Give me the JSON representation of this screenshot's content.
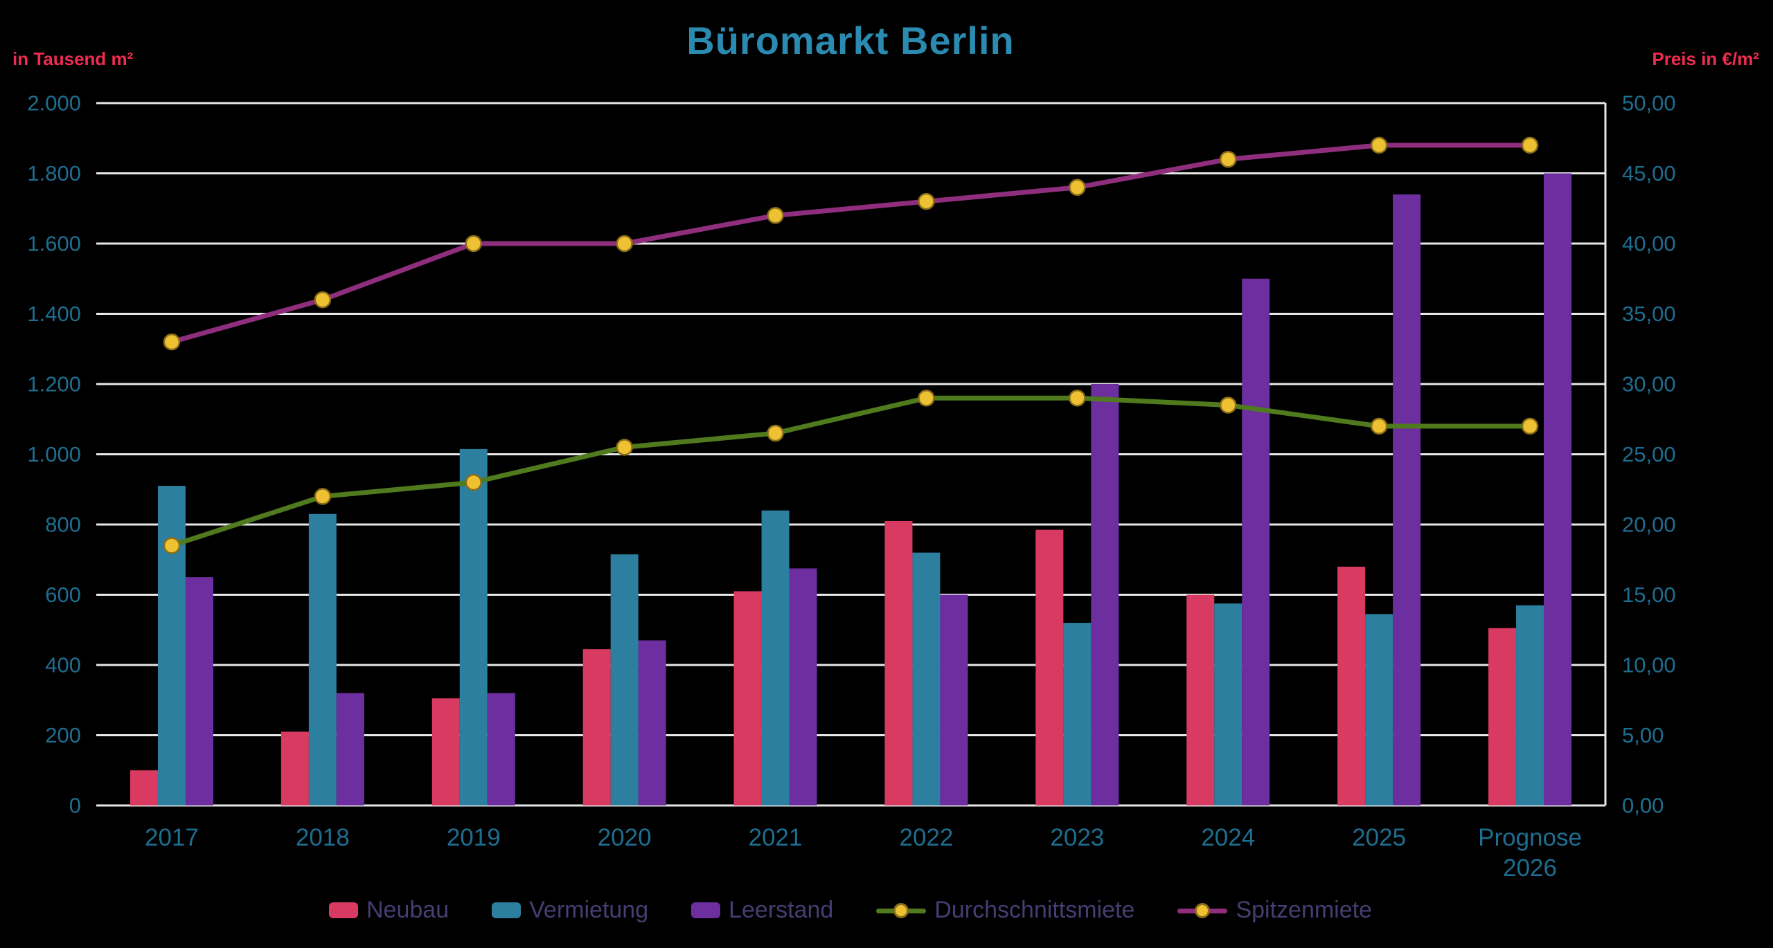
{
  "title": "Büromarkt Berlin",
  "left_axis": {
    "unit_label": "in Tausend m²",
    "tick_labels": [
      "0",
      "200",
      "400",
      "600",
      "800",
      "1.000",
      "1.200",
      "1.400",
      "1.600",
      "1.800",
      "2.000"
    ]
  },
  "right_axis": {
    "unit_label": "Preis in €/m²",
    "tick_labels": [
      "0,00",
      "5,00",
      "10,00",
      "15,00",
      "20,00",
      "25,00",
      "30,00",
      "35,00",
      "40,00",
      "45,00",
      "50,00"
    ]
  },
  "chart_data": {
    "type": "bar+line combo",
    "title": "Büromarkt Berlin",
    "categories": [
      "2017",
      "2018",
      "2019",
      "2020",
      "2021",
      "2022",
      "2023",
      "2024",
      "2025",
      "Prognose\n2026"
    ],
    "left_ylabel": "in Tausend m²",
    "right_ylabel": "Preis in €/m²",
    "left_ylim": [
      0,
      2000
    ],
    "right_ylim": [
      0,
      50
    ],
    "grid": true,
    "legend_position": "bottom",
    "bar_series": [
      {
        "name": "Neubau",
        "axis": "left",
        "color": "#d93a62",
        "values": [
          100,
          210,
          305,
          445,
          610,
          810,
          785,
          600,
          680,
          505
        ]
      },
      {
        "name": "Vermietung",
        "axis": "left",
        "color": "#2c7f9e",
        "values": [
          910,
          830,
          1015,
          715,
          840,
          720,
          520,
          575,
          545,
          570
        ]
      },
      {
        "name": "Leerstand",
        "axis": "left",
        "color": "#6d2f9f",
        "values": [
          650,
          320,
          320,
          470,
          675,
          600,
          1200,
          1500,
          1740,
          1800
        ]
      }
    ],
    "line_series": [
      {
        "name": "Durchschnittsmiete",
        "axis": "right",
        "color": "#4f7a1d",
        "values": [
          18.5,
          22,
          23,
          25.5,
          26.5,
          29,
          29,
          28.5,
          27,
          27
        ]
      },
      {
        "name": "Spitzenmiete",
        "axis": "right",
        "color": "#8e2e7c",
        "values": [
          33,
          36,
          40,
          40,
          42,
          43,
          44,
          46,
          47,
          47
        ]
      }
    ],
    "marker": {
      "fill": "#eec133",
      "stroke": "#8a6d1a"
    },
    "gridline_color": "#e8e8e8",
    "tick_label_color": "#1e6e91",
    "x_label_color": "#1e6e91",
    "title_color": "#2a8ab0",
    "axis_unit_color": "#ef2c50",
    "background_color": "#000000"
  },
  "legend": {
    "label_color": "#453e72",
    "items": [
      {
        "label": "Neubau",
        "swatch": "bar",
        "color": "#d93a62"
      },
      {
        "label": "Vermietung",
        "swatch": "bar",
        "color": "#2c7f9e"
      },
      {
        "label": "Leerstand",
        "swatch": "bar",
        "color": "#6d2f9f"
      },
      {
        "label": "Durchschnittsmiete",
        "swatch": "line-dot",
        "color": "#4f7a1d",
        "dot_color": "#eec133"
      },
      {
        "label": "Spitzenmiete",
        "swatch": "line-dot",
        "color": "#8e2e7c",
        "dot_color": "#eec133"
      }
    ]
  }
}
